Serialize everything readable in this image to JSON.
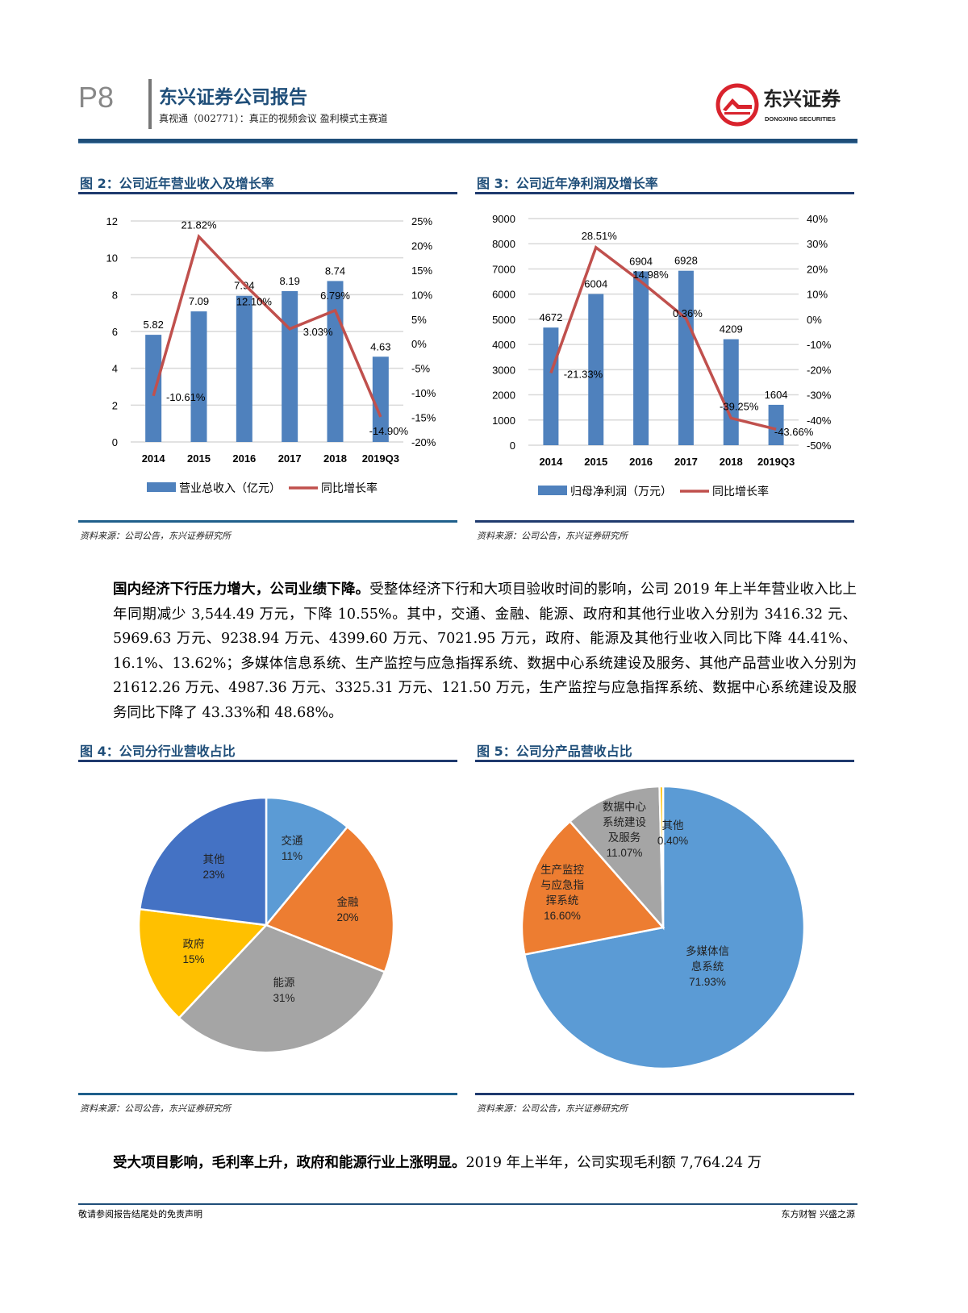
{
  "header": {
    "page": "P8",
    "report_title": "东兴证券公司报告",
    "subtitle": "真视通（002771）：真正的视频会议 盈利模式主赛道",
    "logo_cn": "东兴证券",
    "logo_en": "DONGXING SECURITIES"
  },
  "colors": {
    "brand": "#1f4e79",
    "bar": "#4f81bd",
    "line": "#c0504d",
    "logo_red": "#d9232d"
  },
  "fig2": {
    "title": "图 2：公司近年营业收入及增长率",
    "source": "资料来源：公司公告，东兴证券研究所"
  },
  "fig3": {
    "title": "图 3：公司近年净利润及增长率",
    "source": "资料来源：公司公告，东兴证券研究所"
  },
  "fig4": {
    "title": "图 4：公司分行业营收占比",
    "source": "资料来源：公司公告，东兴证券研究所"
  },
  "fig5": {
    "title": "图 5：公司分产品营收占比",
    "source": "资料来源：公司公告，东兴证券研究所"
  },
  "chart_data": [
    {
      "type": "bar",
      "title": "公司近年营业收入及增长率",
      "categories": [
        "2014",
        "2015",
        "2016",
        "2017",
        "2018",
        "2019Q3"
      ],
      "series": [
        {
          "name": "营业总收入（亿元）",
          "type": "bar",
          "axis": "left",
          "values": [
            5.82,
            7.09,
            7.94,
            8.19,
            8.74,
            4.63
          ],
          "labels": [
            "5.82",
            "7.09",
            "7.94",
            "8.19",
            "8.74",
            "4.63"
          ]
        },
        {
          "name": "同比增长率",
          "type": "line",
          "axis": "right",
          "values": [
            -10.61,
            21.82,
            12.1,
            3.03,
            6.79,
            -14.9
          ],
          "labels": [
            "-10.61%",
            "21.82%",
            "12.10%",
            "3.03%",
            "6.79%",
            "-14.90%"
          ]
        }
      ],
      "ylim": [
        0,
        12
      ],
      "yticks": [
        "0",
        "2",
        "4",
        "6",
        "8",
        "10",
        "12"
      ],
      "y2lim": [
        -20,
        25
      ],
      "y2ticks": [
        "-20%",
        "-15%",
        "-10%",
        "-5%",
        "0%",
        "5%",
        "10%",
        "15%",
        "20%",
        "25%"
      ],
      "legend": "bottom",
      "grid": true
    },
    {
      "type": "bar",
      "title": "公司近年净利润及增长率",
      "categories": [
        "2014",
        "2015",
        "2016",
        "2017",
        "2018",
        "2019Q3"
      ],
      "series": [
        {
          "name": "归母净利润（万元）",
          "type": "bar",
          "axis": "left",
          "values": [
            4672,
            6004,
            6904,
            6928,
            4209,
            1604
          ],
          "labels": [
            "4672",
            "6004",
            "6904",
            "6928",
            "4209",
            "1604"
          ]
        },
        {
          "name": "同比增长率",
          "type": "line",
          "axis": "right",
          "values": [
            -21.33,
            28.51,
            14.98,
            0.36,
            -39.25,
            -43.66
          ],
          "labels": [
            "-21.33%",
            "28.51%",
            "14.98%",
            "0.36%",
            "-39.25%",
            "-43.66%"
          ]
        }
      ],
      "ylim": [
        0,
        9000
      ],
      "yticks": [
        "0",
        "1000",
        "2000",
        "3000",
        "4000",
        "5000",
        "6000",
        "7000",
        "8000",
        "9000"
      ],
      "y2lim": [
        -50,
        40
      ],
      "y2ticks": [
        "-50%",
        "-40%",
        "-30%",
        "-20%",
        "-10%",
        "0%",
        "10%",
        "20%",
        "30%",
        "40%"
      ],
      "legend": "bottom",
      "grid": true
    },
    {
      "type": "pie",
      "title": "公司分行业营收占比",
      "slices": [
        {
          "label": "交通",
          "value": 11,
          "text": "11%",
          "color": "#5b9bd5"
        },
        {
          "label": "金融",
          "value": 20,
          "text": "20%",
          "color": "#ed7d31"
        },
        {
          "label": "能源",
          "value": 31,
          "text": "31%",
          "color": "#a5a5a5"
        },
        {
          "label": "政府",
          "value": 15,
          "text": "15%",
          "color": "#ffc000"
        },
        {
          "label": "其他",
          "value": 23,
          "text": "23%",
          "color": "#4472c4"
        }
      ]
    },
    {
      "type": "pie",
      "title": "公司分产品营收占比",
      "slices": [
        {
          "label": "多媒体信息系统",
          "lines": [
            "多媒体信",
            "息系统"
          ],
          "value": 71.93,
          "text": "71.93%",
          "color": "#5b9bd5"
        },
        {
          "label": "生产监控与应急指挥系统",
          "lines": [
            "生产监控",
            "与应急指",
            "挥系统"
          ],
          "value": 16.6,
          "text": "16.60%",
          "color": "#ed7d31"
        },
        {
          "label": "数据中心系统建设及服务",
          "lines": [
            "数据中心",
            "系统建设",
            "及服务"
          ],
          "value": 11.07,
          "text": "11.07%",
          "color": "#a5a5a5"
        },
        {
          "label": "其他",
          "lines": [
            "其他"
          ],
          "value": 0.4,
          "text": "0.40%",
          "color": "#ffc000"
        }
      ]
    }
  ],
  "para1": {
    "bold": "国内经济下行压力增大，公司业绩下降。",
    "text": "受整体经济下行和大项目验收时间的影响，公司 2019 年上半年营业收入比上年同期减少 3,544.49 万元，下降 10.55%。其中，交通、金融、能源、政府和其他行业收入分别为 3416.32 元、5969.63 万元、9238.94 万元、4399.60 万元、7021.95 万元，政府、能源及其他行业收入同比下降 44.41%、16.1%、13.62%；多媒体信息系统、生产监控与应急指挥系统、数据中心系统建设及服务、其他产品营业收入分别为 21612.26 万元、4987.36 万元、3325.31 万元、121.50 万元，生产监控与应急指挥系统、数据中心系统建设及服务同比下降了 43.33%和 48.68%。"
  },
  "para2": {
    "bold": "受大项目影响，毛利率上升，政府和能源行业上涨明显。",
    "text": "2019 年上半年，公司实现毛利额 7,764.24 万"
  },
  "footer": {
    "left": "敬请参阅报告结尾处的免责声明",
    "right": "东方财智 兴盛之源"
  }
}
